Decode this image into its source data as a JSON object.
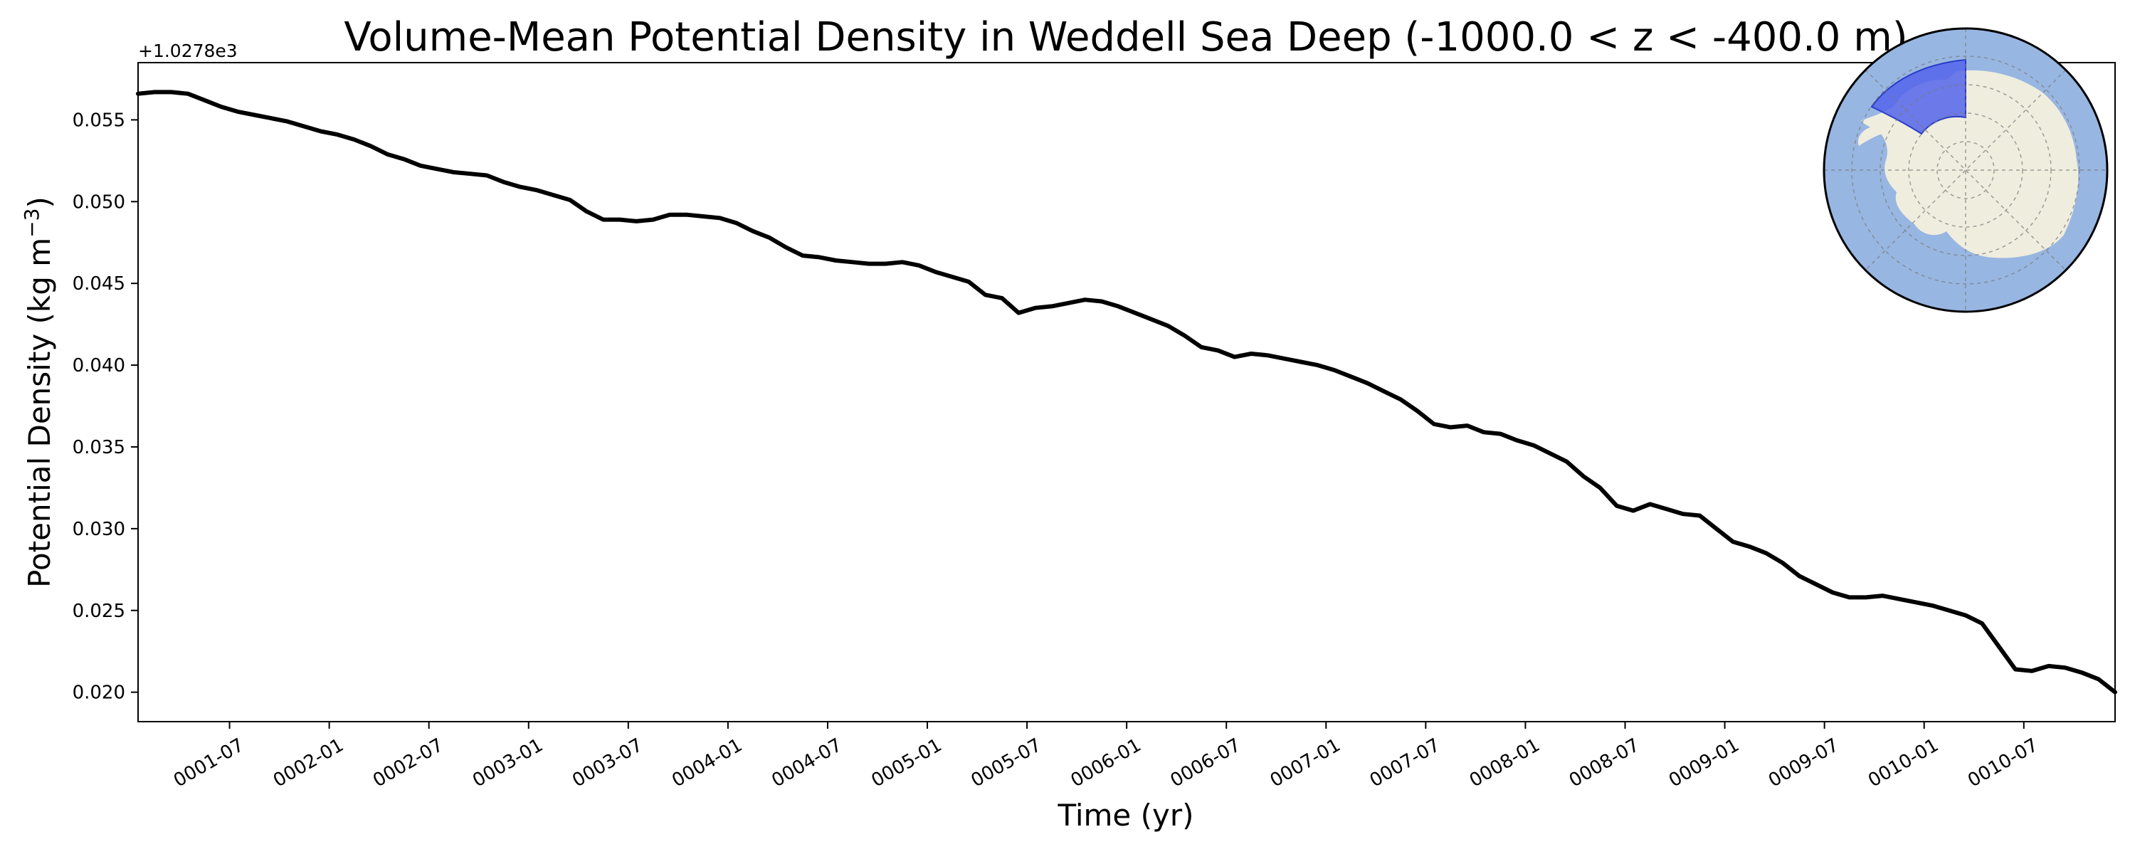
{
  "chart_data": {
    "type": "line",
    "title": "Volume-Mean Potential Density in Weddell Sea Deep (-1000.0 < z < -400.0 m)",
    "xlabel": "Time (yr)",
    "ylabel_main": "Potential Density (kg m",
    "ylabel_sup": "−3",
    "ylabel_close": ")",
    "y_offset_label": "+1.0278e3",
    "xlim": [
      "0001-01-16",
      "0010-12-16"
    ],
    "ylim": [
      0.0182,
      0.0585
    ],
    "grid": false,
    "legend": "none",
    "x_ticks": [
      "0001-07",
      "0002-01",
      "0002-07",
      "0003-01",
      "0003-07",
      "0004-01",
      "0004-07",
      "0005-01",
      "0005-07",
      "0006-01",
      "0006-07",
      "0007-01",
      "0007-07",
      "0008-01",
      "0008-07",
      "0009-01",
      "0009-07",
      "0010-01",
      "0010-07"
    ],
    "y_ticks": [
      "0.020",
      "0.025",
      "0.030",
      "0.035",
      "0.040",
      "0.045",
      "0.050",
      "0.055"
    ],
    "series": [
      {
        "color": "#000000",
        "x": [
          "0001-01",
          "0001-02",
          "0001-03",
          "0001-04",
          "0001-05",
          "0001-06",
          "0001-07",
          "0001-08",
          "0001-09",
          "0001-10",
          "0001-11",
          "0001-12",
          "0002-01",
          "0002-02",
          "0002-03",
          "0002-04",
          "0002-05",
          "0002-06",
          "0002-07",
          "0002-08",
          "0002-09",
          "0002-10",
          "0002-11",
          "0002-12",
          "0003-01",
          "0003-02",
          "0003-03",
          "0003-04",
          "0003-05",
          "0003-06",
          "0003-07",
          "0003-08",
          "0003-09",
          "0003-10",
          "0003-11",
          "0003-12",
          "0004-01",
          "0004-02",
          "0004-03",
          "0004-04",
          "0004-05",
          "0004-06",
          "0004-07",
          "0004-08",
          "0004-09",
          "0004-10",
          "0004-11",
          "0004-12",
          "0005-01",
          "0005-02",
          "0005-03",
          "0005-04",
          "0005-05",
          "0005-06",
          "0005-07",
          "0005-08",
          "0005-09",
          "0005-10",
          "0005-11",
          "0005-12",
          "0006-01",
          "0006-02",
          "0006-03",
          "0006-04",
          "0006-05",
          "0006-06",
          "0006-07",
          "0006-08",
          "0006-09",
          "0006-10",
          "0006-11",
          "0006-12",
          "0007-01",
          "0007-02",
          "0007-03",
          "0007-04",
          "0007-05",
          "0007-06",
          "0007-07",
          "0007-08",
          "0007-09",
          "0007-10",
          "0007-11",
          "0007-12",
          "0008-01",
          "0008-02",
          "0008-03",
          "0008-04",
          "0008-05",
          "0008-06",
          "0008-07",
          "0008-08",
          "0008-09",
          "0008-10",
          "0008-11",
          "0008-12",
          "0009-01",
          "0009-02",
          "0009-03",
          "0009-04",
          "0009-05",
          "0009-06",
          "0009-07",
          "0009-08",
          "0009-09",
          "0009-10",
          "0009-11",
          "0009-12",
          "0010-01",
          "0010-02",
          "0010-03",
          "0010-04",
          "0010-05",
          "0010-06",
          "0010-07",
          "0010-08",
          "0010-09",
          "0010-10",
          "0010-11",
          "0010-12"
        ],
        "y": [
          0.0566,
          0.0567,
          0.0567,
          0.0566,
          0.0562,
          0.0558,
          0.0555,
          0.0553,
          0.0551,
          0.0549,
          0.0546,
          0.0543,
          0.0541,
          0.0538,
          0.0534,
          0.0529,
          0.0526,
          0.0522,
          0.052,
          0.0518,
          0.0517,
          0.0516,
          0.0512,
          0.0509,
          0.0507,
          0.0504,
          0.0501,
          0.0494,
          0.0489,
          0.0489,
          0.0488,
          0.0489,
          0.0492,
          0.0492,
          0.0491,
          0.049,
          0.0487,
          0.0482,
          0.0478,
          0.0472,
          0.0467,
          0.0466,
          0.0464,
          0.0463,
          0.0462,
          0.0462,
          0.0463,
          0.0461,
          0.0457,
          0.0454,
          0.0451,
          0.0443,
          0.0441,
          0.0432,
          0.0435,
          0.0436,
          0.0438,
          0.044,
          0.0439,
          0.0436,
          0.0432,
          0.0428,
          0.0424,
          0.0418,
          0.0411,
          0.0409,
          0.0405,
          0.0407,
          0.0406,
          0.0404,
          0.0402,
          0.04,
          0.0397,
          0.0393,
          0.0389,
          0.0384,
          0.0379,
          0.0372,
          0.0364,
          0.0362,
          0.0363,
          0.0359,
          0.0358,
          0.0354,
          0.0351,
          0.0346,
          0.0341,
          0.0332,
          0.0325,
          0.0314,
          0.0311,
          0.0315,
          0.0312,
          0.0309,
          0.0308,
          0.03,
          0.0292,
          0.0289,
          0.0285,
          0.0279,
          0.0271,
          0.0266,
          0.0261,
          0.0258,
          0.0258,
          0.0259,
          0.0257,
          0.0255,
          0.0253,
          0.025,
          0.0247,
          0.0242,
          0.0228,
          0.0214,
          0.0213,
          0.0216,
          0.0215,
          0.0212,
          0.0208,
          0.02
        ]
      }
    ],
    "inset_map": {
      "ocean_color": "#98b6e2",
      "land_color": "#efedde",
      "region_color": "#5464eb",
      "region_edge_color": "#2a3cc8"
    }
  }
}
